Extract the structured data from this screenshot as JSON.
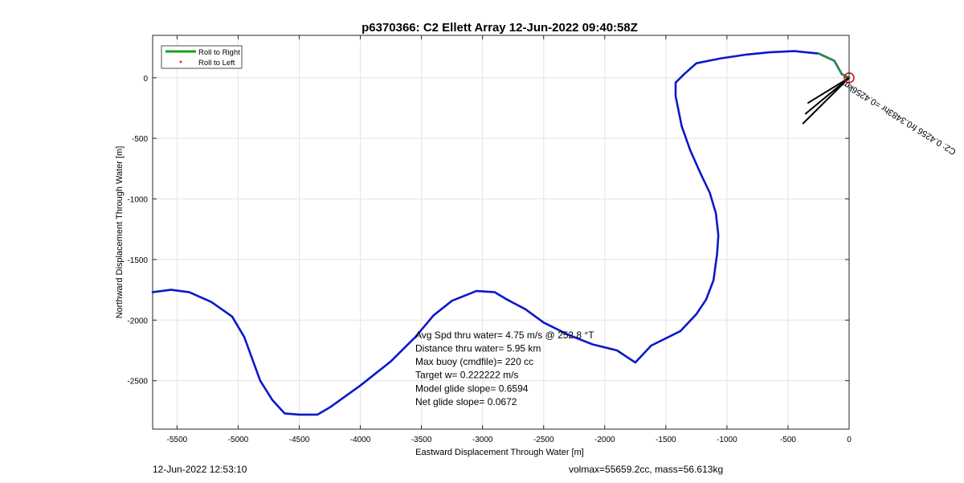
{
  "chart_data": {
    "type": "line",
    "title": "p6370366: C2 Ellett Array 12-Jun-2022 09:40:58Z",
    "xlabel": "Eastward Displacement Through Water [m]",
    "ylabel": "Northward Displacement Through Water [m]",
    "xlim": [
      -5700,
      0
    ],
    "ylim": [
      -2900,
      350
    ],
    "xticks": [
      -5500,
      -5000,
      -4500,
      -4000,
      -3500,
      -3000,
      -2500,
      -2000,
      -1500,
      -1000,
      -500,
      0
    ],
    "yticks": [
      0,
      -500,
      -1000,
      -1500,
      -2000,
      -2500
    ],
    "grid": true,
    "legend": {
      "location": "top-left",
      "entries": [
        {
          "label": "Roll to Right",
          "color": "#1aa01a",
          "style": "line"
        },
        {
          "label": "Roll to Left",
          "color": "#e0101a",
          "style": "dot"
        }
      ]
    },
    "series": [
      {
        "style": "track",
        "color": "#0a19c8",
        "x": [
          0,
          -60,
          -120,
          -250,
          -450,
          -650,
          -850,
          -1050,
          -1250,
          -1350,
          -1420,
          -1420,
          -1370,
          -1300,
          -1220,
          -1140,
          -1090,
          -1070,
          -1080,
          -1110,
          -1170,
          -1250,
          -1380,
          -1620,
          -1750,
          -1900,
          -2100,
          -2300,
          -2500,
          -2650,
          -2800,
          -2900,
          -3050,
          -3250,
          -3400,
          -3550,
          -3750,
          -4000,
          -4250,
          -4350,
          -4500,
          -4620,
          -4720,
          -4820,
          -4950,
          -5050,
          -5220,
          -5400,
          -5550,
          -5700
        ],
        "y": [
          0,
          30,
          140,
          200,
          220,
          210,
          190,
          160,
          120,
          30,
          -40,
          -150,
          -400,
          -600,
          -780,
          -950,
          -1120,
          -1300,
          -1450,
          -1670,
          -1830,
          -1950,
          -2090,
          -2210,
          -2350,
          -2250,
          -2200,
          -2120,
          -2020,
          -1910,
          -1830,
          -1770,
          -1760,
          -1840,
          -1960,
          -2140,
          -2340,
          -2540,
          -2720,
          -2780,
          -2780,
          -2770,
          -2660,
          -2500,
          -2140,
          -1970,
          -1850,
          -1770,
          -1750,
          -1770
        ]
      },
      {
        "style": "segment",
        "color": "#1aa01a",
        "x": [
          -250,
          -120,
          -60,
          0
        ],
        "y": [
          200,
          140,
          30,
          0
        ]
      }
    ],
    "arrows": [
      {
        "x": [
          0,
          -340
        ],
        "y": [
          0,
          -210
        ]
      },
      {
        "x": [
          0,
          -360
        ],
        "y": [
          0,
          -300
        ]
      },
      {
        "x": [
          0,
          -380
        ],
        "y": [
          0,
          -380
        ]
      }
    ],
    "marker": {
      "x": 0,
      "y": 0,
      "color": "#e0101a"
    },
    "annotations": [
      {
        "text": "Avg Spd thru water=  4.75 m/s @ 252.8 °T",
        "x": -3550,
        "y": -2150
      },
      {
        "text": "Distance thru water=  5.95 km",
        "x": -3550,
        "y": -2260
      },
      {
        "text": "Max buoy (cmdfile)= 220 cc",
        "x": -3550,
        "y": -2370
      },
      {
        "text": "Target w= 0.222222 m/s",
        "x": -3550,
        "y": -2480
      },
      {
        "text": "Model glide slope= 0.6594",
        "x": -3550,
        "y": -2590
      },
      {
        "text": "Net glide slope= 0.0672",
        "x": -3550,
        "y": -2700
      }
    ],
    "rotated_label": {
      "text": "C2: 0.4256 fr0.3483hr =0.4256km",
      "x": -40,
      "y": -20,
      "rotation_deg": 32
    }
  },
  "footer": {
    "timestamp": "12-Jun-2022 12:53:10",
    "info": "volmax=55659.2cc, mass=56.613kg"
  }
}
